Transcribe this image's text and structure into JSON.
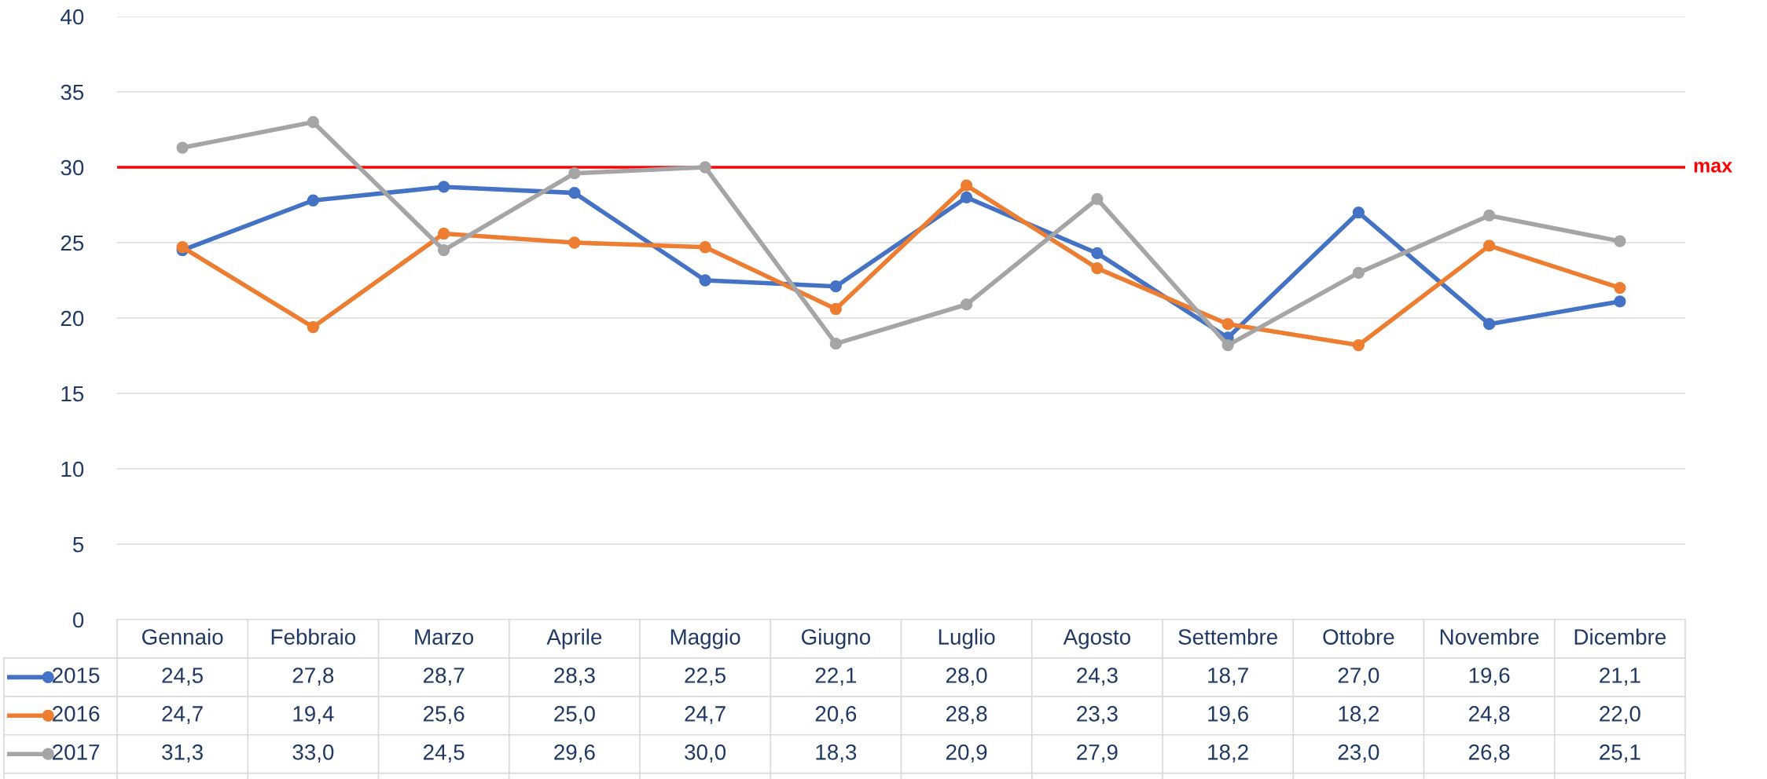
{
  "chart_data": {
    "type": "line",
    "categories": [
      "Gennaio",
      "Febbraio",
      "Marzo",
      "Aprile",
      "Maggio",
      "Giugno",
      "Luglio",
      "Agosto",
      "Settembre",
      "Ottobre",
      "Novembre",
      "Dicembre"
    ],
    "series": [
      {
        "name": "2015",
        "color": "#4472c4",
        "values": [
          24.5,
          27.8,
          28.7,
          28.3,
          22.5,
          22.1,
          28.0,
          24.3,
          18.7,
          27.0,
          19.6,
          21.1
        ],
        "value_labels": [
          "24,5",
          "27,8",
          "28,7",
          "28,3",
          "22,5",
          "22,1",
          "28,0",
          "24,3",
          "18,7",
          "27,0",
          "19,6",
          "21,1"
        ]
      },
      {
        "name": "2016",
        "color": "#ed7d31",
        "values": [
          24.7,
          19.4,
          25.6,
          25.0,
          24.7,
          20.6,
          28.8,
          23.3,
          19.6,
          18.2,
          24.8,
          22.0
        ],
        "value_labels": [
          "24,7",
          "19,4",
          "25,6",
          "25,0",
          "24,7",
          "20,6",
          "28,8",
          "23,3",
          "19,6",
          "18,2",
          "24,8",
          "22,0"
        ]
      },
      {
        "name": "2017",
        "color": "#a5a5a5",
        "values": [
          31.3,
          33.0,
          24.5,
          29.6,
          30.0,
          18.3,
          20.9,
          27.9,
          18.2,
          23.0,
          26.8,
          25.1
        ],
        "value_labels": [
          "31,3",
          "33,0",
          "24,5",
          "29,6",
          "30,0",
          "18,3",
          "20,9",
          "27,9",
          "18,2",
          "23,0",
          "26,8",
          "25,1"
        ]
      }
    ],
    "ylim": [
      0,
      40
    ],
    "yticks": [
      0,
      5,
      10,
      15,
      20,
      25,
      30,
      35,
      40
    ],
    "ref_lines": [
      {
        "axis": "y",
        "value": 30,
        "label": "max",
        "color": "#ff0000"
      }
    ],
    "grid": "y",
    "marker": "circle",
    "legend": "bottom"
  }
}
